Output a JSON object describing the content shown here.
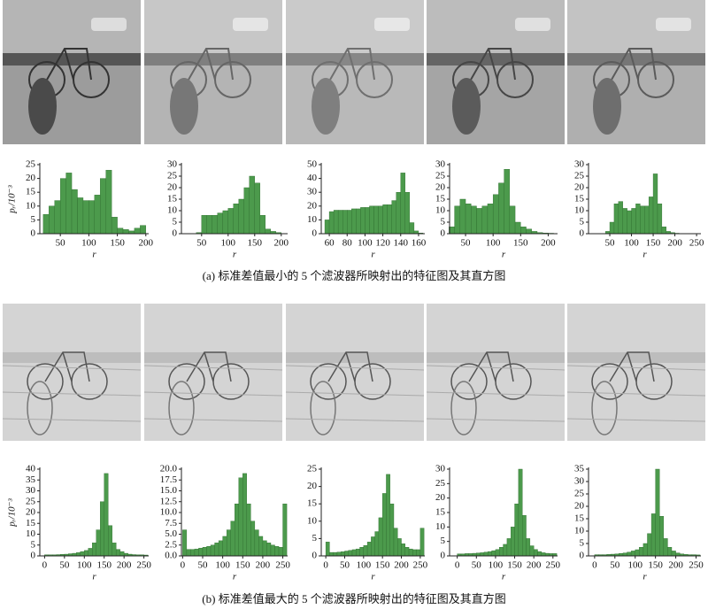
{
  "chart_data": [
    {
      "type": "histogram",
      "xlabel": "r",
      "ylabel": "pᵣ/10⁻³",
      "color": "#4c9a4c",
      "bins": [
        20,
        30,
        40,
        50,
        60,
        70,
        80,
        90,
        100,
        110,
        120,
        130,
        140,
        150,
        160,
        170,
        180,
        190,
        200
      ],
      "values": [
        7,
        10,
        12,
        20,
        22,
        16,
        13,
        12,
        12,
        14,
        20,
        23,
        6,
        2,
        1.5,
        1,
        2,
        3
      ],
      "xlim": [
        14,
        205
      ],
      "xticks": [
        50,
        100,
        150,
        200
      ],
      "ylim": [
        0,
        25
      ],
      "yticks": [
        0,
        5,
        10,
        15,
        20,
        25
      ]
    },
    {
      "type": "histogram",
      "xlabel": "r",
      "color": "#4c9a4c",
      "bins": [
        40,
        50,
        60,
        70,
        80,
        90,
        100,
        110,
        120,
        130,
        140,
        150,
        160,
        170,
        180,
        190,
        200
      ],
      "values": [
        0.5,
        8,
        8,
        8,
        9,
        10,
        11,
        13,
        15,
        20,
        25,
        22,
        8,
        2,
        1,
        0.5
      ],
      "xlim": [
        12,
        212
      ],
      "xticks": [
        50,
        100,
        150,
        200
      ],
      "ylim": [
        0,
        30
      ],
      "yticks": [
        0,
        5,
        10,
        15,
        20,
        25,
        30
      ]
    },
    {
      "type": "histogram",
      "xlabel": "r",
      "color": "#4c9a4c",
      "bins": [
        55,
        60,
        65,
        70,
        75,
        80,
        85,
        90,
        95,
        100,
        105,
        110,
        115,
        120,
        125,
        130,
        135,
        140,
        145,
        150,
        155,
        160,
        165
      ],
      "values": [
        10,
        16,
        17,
        17,
        17,
        17,
        18,
        18,
        19,
        19,
        20,
        20,
        20,
        21,
        21,
        24,
        30,
        44,
        30,
        8,
        2,
        0.5
      ],
      "xlim": [
        51,
        167
      ],
      "xticks": [
        60,
        80,
        100,
        120,
        140,
        160
      ],
      "ylim": [
        0,
        50
      ],
      "yticks": [
        0,
        10,
        20,
        30,
        40,
        50
      ]
    },
    {
      "type": "histogram",
      "xlabel": "r",
      "color": "#4c9a4c",
      "bins": [
        20,
        30,
        40,
        50,
        60,
        70,
        80,
        90,
        100,
        110,
        120,
        130,
        140,
        150,
        160,
        170,
        180,
        190,
        200,
        210
      ],
      "values": [
        3,
        12,
        15,
        13,
        12,
        11,
        12,
        13,
        17,
        22,
        28,
        12,
        5,
        3,
        2,
        1,
        0.5,
        0.3,
        0.2
      ],
      "xlim": [
        21,
        217
      ],
      "xticks": [
        50,
        100,
        150,
        200
      ],
      "ylim": [
        0,
        30
      ],
      "yticks": [
        0,
        5,
        10,
        15,
        20,
        25,
        30
      ]
    },
    {
      "type": "histogram",
      "xlabel": "r",
      "color": "#4c9a4c",
      "bins": [
        40,
        50,
        60,
        70,
        80,
        90,
        100,
        110,
        120,
        130,
        140,
        150,
        160,
        170,
        180,
        190,
        200,
        210
      ],
      "values": [
        1,
        5,
        13,
        14,
        11,
        10,
        11,
        13,
        12,
        12,
        16,
        26,
        13,
        3,
        1,
        0.5,
        0.2
      ],
      "xlim": [
        1,
        260
      ],
      "xticks": [
        50,
        100,
        150,
        200,
        250
      ],
      "ylim": [
        0,
        30
      ],
      "yticks": [
        0,
        5,
        10,
        15,
        20,
        25,
        30
      ]
    },
    {
      "type": "histogram",
      "xlabel": "r",
      "ylabel": "pᵣ/10⁻³",
      "color": "#4c9a4c",
      "bins": [
        0,
        10,
        20,
        30,
        40,
        50,
        60,
        70,
        80,
        90,
        100,
        110,
        120,
        130,
        140,
        150,
        160,
        170,
        180,
        190,
        200,
        210,
        220,
        230,
        240,
        250,
        260
      ],
      "values": [
        0.5,
        0.5,
        0.5,
        0.6,
        0.7,
        0.8,
        1,
        1.2,
        1.5,
        2,
        2.5,
        3.5,
        6,
        12,
        25,
        38,
        14,
        6,
        3,
        2,
        1.2,
        0.8,
        0.6,
        0.5,
        0.5,
        0.4
      ],
      "xlim": [
        -12,
        262
      ],
      "xticks": [
        0,
        50,
        100,
        150,
        200,
        250
      ],
      "ylim": [
        0,
        40
      ],
      "yticks": [
        0,
        5,
        10,
        15,
        20,
        25,
        30,
        35,
        40
      ]
    },
    {
      "type": "histogram",
      "xlabel": "r",
      "color": "#4c9a4c",
      "bins": [
        0,
        10,
        20,
        30,
        40,
        50,
        60,
        70,
        80,
        90,
        100,
        110,
        120,
        130,
        140,
        150,
        160,
        170,
        180,
        190,
        200,
        210,
        220,
        230,
        240,
        250,
        260
      ],
      "values": [
        6,
        1.5,
        1.5,
        1.6,
        1.8,
        2,
        2.2,
        2.5,
        3,
        3.5,
        4.5,
        6,
        8,
        12,
        18,
        19,
        12,
        8,
        6,
        4.5,
        3.5,
        3,
        2.5,
        2.2,
        2,
        12
      ],
      "xlim": [
        -3,
        262
      ],
      "xticks": [
        0,
        50,
        100,
        150,
        200,
        250
      ],
      "ylim": [
        0,
        20
      ],
      "yticks": [
        {
          "value": 0,
          "label": "0.0"
        },
        {
          "value": 2.5,
          "label": "2.5"
        },
        {
          "value": 5,
          "label": "5.0"
        },
        {
          "value": 7.5,
          "label": "7.5"
        },
        {
          "value": 10,
          "label": "10.0"
        },
        {
          "value": 12.5,
          "label": "12.5"
        },
        {
          "value": 15,
          "label": "15.0"
        },
        {
          "value": 17.5,
          "label": "17.5"
        },
        {
          "value": 20,
          "label": "20.0"
        }
      ]
    },
    {
      "type": "histogram",
      "xlabel": "r",
      "color": "#4c9a4c",
      "bins": [
        0,
        10,
        20,
        30,
        40,
        50,
        60,
        70,
        80,
        90,
        100,
        110,
        120,
        130,
        140,
        150,
        160,
        170,
        180,
        190,
        200,
        210,
        220,
        230,
        240,
        250,
        260
      ],
      "values": [
        4,
        1,
        1,
        1.1,
        1.2,
        1.4,
        1.6,
        1.8,
        2,
        2.5,
        3,
        4,
        5.5,
        7,
        11,
        18,
        23.5,
        15,
        8,
        5,
        3.5,
        2.5,
        2,
        1.8,
        1.8,
        8
      ],
      "xlim": [
        -12,
        262
      ],
      "xticks": [
        0,
        50,
        100,
        150,
        200,
        250
      ],
      "ylim": [
        0,
        25
      ],
      "yticks": [
        0,
        5,
        10,
        15,
        20,
        25
      ]
    },
    {
      "type": "histogram",
      "xlabel": "r",
      "color": "#4c9a4c",
      "bins": [
        0,
        10,
        20,
        30,
        40,
        50,
        60,
        70,
        80,
        90,
        100,
        110,
        120,
        130,
        140,
        150,
        160,
        170,
        180,
        190,
        200,
        210,
        220,
        230,
        240,
        250,
        260
      ],
      "values": [
        0.7,
        0.7,
        0.8,
        0.8,
        0.9,
        1,
        1.1,
        1.3,
        1.5,
        1.8,
        2.2,
        3,
        4,
        6,
        10,
        18,
        30,
        14,
        6,
        3.5,
        2.2,
        1.5,
        1.1,
        0.9,
        0.8,
        0.8
      ],
      "xlim": [
        -20,
        262
      ],
      "xticks": [
        0,
        50,
        100,
        150,
        200,
        250
      ],
      "ylim": [
        0,
        30
      ],
      "yticks": [
        0,
        5,
        10,
        15,
        20,
        25,
        30
      ]
    },
    {
      "type": "histogram",
      "xlabel": "r",
      "color": "#4c9a4c",
      "bins": [
        0,
        10,
        20,
        30,
        40,
        50,
        60,
        70,
        80,
        90,
        100,
        110,
        120,
        130,
        140,
        150,
        160,
        170,
        180,
        190,
        200,
        210,
        220,
        230,
        240,
        250,
        260
      ],
      "values": [
        0.5,
        0.5,
        0.5,
        0.6,
        0.7,
        0.8,
        1,
        1.2,
        1.5,
        2,
        2.5,
        3.5,
        5,
        9,
        17,
        35,
        16,
        7,
        3.5,
        2,
        1.2,
        0.8,
        0.6,
        0.5,
        0.5,
        0.4
      ],
      "xlim": [
        -15,
        262
      ],
      "xticks": [
        0,
        50,
        100,
        150,
        200,
        250
      ],
      "ylim": [
        0,
        35
      ],
      "yticks": [
        0,
        5,
        10,
        15,
        20,
        25,
        30,
        35
      ]
    }
  ],
  "captions": {
    "a": "(a) 标准差值最小的 5 个滤波器所映射出的特征图及其直方图",
    "b": "(b) 标准差值最大的 5 个滤波器所映射出的特征图及其直方图"
  }
}
